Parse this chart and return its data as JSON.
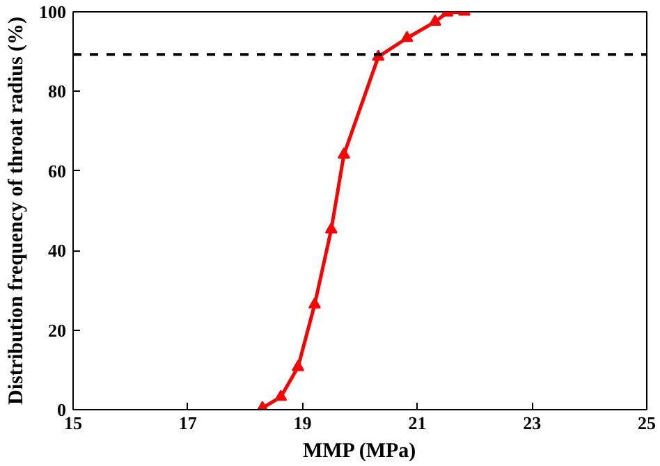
{
  "chart_data": {
    "type": "line",
    "xlabel": "MMP (MPa)",
    "ylabel": "Distribution frequency of throat radius (%)",
    "x": [
      18.3,
      18.62,
      18.92,
      19.21,
      19.5,
      19.72,
      20.32,
      20.82,
      21.31,
      21.52,
      21.82
    ],
    "series": [
      {
        "color": "#ff0000",
        "values": [
          0.4,
          3.2,
          10.7,
          26.4,
          45.3,
          64.1,
          88.7,
          93.4,
          97.5,
          99.8,
          100
        ]
      }
    ],
    "xlim": [
      15,
      25
    ],
    "ylim": [
      0,
      100
    ],
    "xticks": [
      15,
      17,
      19,
      21,
      23,
      25
    ],
    "yticks": [
      0,
      20,
      40,
      60,
      80,
      100
    ],
    "marker": "triangle",
    "line_style": "solid",
    "grid": false,
    "ref_lines": [
      {
        "axis": "y",
        "value": 89.3,
        "color": "#000000",
        "line_style": "dashed"
      }
    ]
  }
}
